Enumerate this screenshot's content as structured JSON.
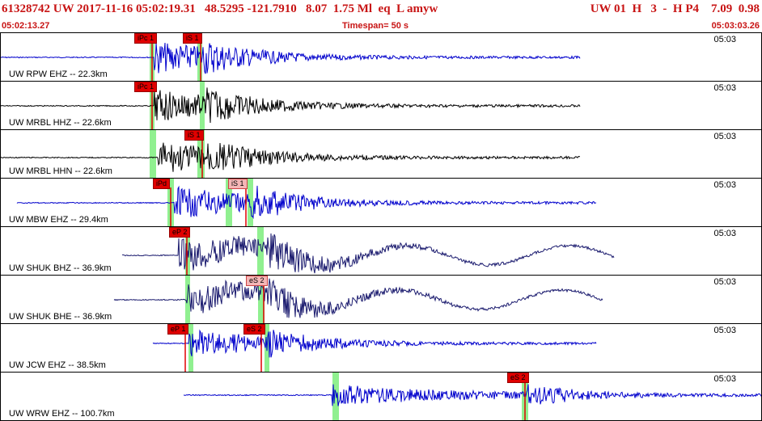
{
  "header": {
    "main": "61328742 UW 2017-11-16 05:02:19.31   48.5295 -121.7910   8.07  1.75 Ml  eq  L amyw",
    "right": "UW 01  H   3  -  H P4    7.09  0.98",
    "start_time": "05:02:13.27",
    "timespan": "Timespan=  50 s",
    "end_time": "05:03:03.26"
  },
  "colors": {
    "header_text": "#c81414",
    "trace_blue": "#0000cc",
    "trace_black": "#000000",
    "trace_navy": "#1a1a6e",
    "pick_marker": "#e00000",
    "pick_window": "#90f090"
  },
  "panels": [
    {
      "label": "UW RPW EHZ -- 22.3km",
      "time": "05:03",
      "color": "trace_blue",
      "picks": [
        {
          "text": "iPc 1",
          "light": false
        },
        {
          "text": "iS 1",
          "light": false
        }
      ]
    },
    {
      "label": "UW MRBL HHZ -- 22.6km",
      "time": "05:03",
      "color": "trace_black",
      "picks": [
        {
          "text": "iPc 1",
          "light": false
        }
      ]
    },
    {
      "label": "UW MRBL HHN -- 22.6km",
      "time": "05:03",
      "color": "trace_black",
      "picks": [
        {
          "text": "iS 1",
          "light": false
        }
      ]
    },
    {
      "label": "UW MBW EHZ -- 29.4km",
      "time": "05:03",
      "color": "trace_blue",
      "picks": [
        {
          "text": "iPd",
          "light": false
        },
        {
          "text": "iS 1",
          "light": true
        }
      ]
    },
    {
      "label": "UW SHUK BHZ -- 36.9km",
      "time": "05:03",
      "color": "trace_navy",
      "picks": [
        {
          "text": "eP 2",
          "light": false
        }
      ]
    },
    {
      "label": "UW SHUK BHE -- 36.9km",
      "time": "05:03",
      "color": "trace_navy",
      "picks": [
        {
          "text": "eS 2",
          "light": true
        }
      ]
    },
    {
      "label": "UW JCW EHZ -- 38.5km",
      "time": "05:03",
      "color": "trace_blue",
      "picks": [
        {
          "text": "eP 1",
          "light": false
        },
        {
          "text": "eS 2",
          "light": false
        }
      ]
    },
    {
      "label": "UW WRW EHZ -- 100.7km",
      "time": "05:03",
      "color": "trace_blue",
      "picks": [
        {
          "text": "eS 2",
          "light": false
        }
      ]
    }
  ]
}
